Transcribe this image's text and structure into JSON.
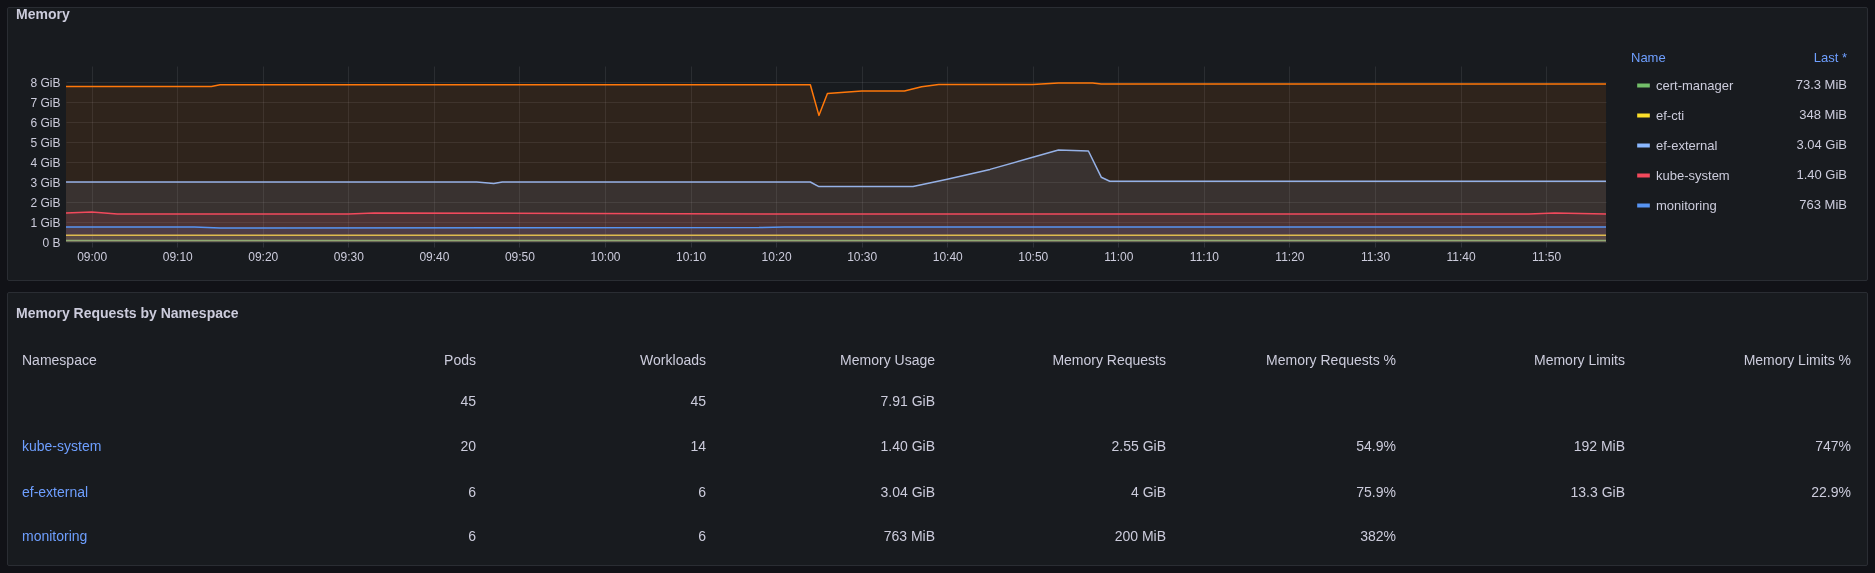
{
  "chart_data": [
    {
      "type": "area",
      "title": "Memory",
      "legend_title": "Name",
      "legend": "right",
      "grid": true,
      "annotations": [
        "Last *",
        "73.3 MiB",
        "348 MiB",
        "3.04 GiB",
        "1.40 GiB",
        "763 MiB"
      ],
      "xlim": [
        8.95,
        11.95
      ],
      "xticks": [
        {
          "value": 9,
          "label": "09:00"
        },
        {
          "value": 9.1667,
          "label": "09:10"
        },
        {
          "value": 9.3333,
          "label": "09:20"
        },
        {
          "value": 9.5,
          "label": "09:30"
        },
        {
          "value": 9.6667,
          "label": "09:40"
        },
        {
          "value": 9.8333,
          "label": "09:50"
        },
        {
          "value": 10,
          "label": "10:00"
        },
        {
          "value": 10.1667,
          "label": "10:10"
        },
        {
          "value": 10.3333,
          "label": "10:20"
        },
        {
          "value": 10.5,
          "label": "10:30"
        },
        {
          "value": 10.6667,
          "label": "10:40"
        },
        {
          "value": 10.8333,
          "label": "10:50"
        },
        {
          "value": 11,
          "label": "11:00"
        },
        {
          "value": 11.1667,
          "label": "11:10"
        },
        {
          "value": 11.3333,
          "label": "11:20"
        },
        {
          "value": 11.5,
          "label": "11:30"
        },
        {
          "value": 11.6667,
          "label": "11:40"
        },
        {
          "value": 11.8333,
          "label": "11:50"
        }
      ],
      "ylim": [
        0,
        8.8
      ],
      "yticks": [
        {
          "value": 0,
          "label": "0 B"
        },
        {
          "value": 1,
          "label": "1 GiB"
        },
        {
          "value": 2,
          "label": "2 GiB"
        },
        {
          "value": 3,
          "label": "3 GiB"
        },
        {
          "value": 4,
          "label": "4 GiB"
        },
        {
          "value": 5,
          "label": "5 GiB"
        },
        {
          "value": 6,
          "label": "6 GiB"
        },
        {
          "value": 7,
          "label": "7 GiB"
        },
        {
          "value": 8,
          "label": "8 GiB"
        }
      ],
      "series": [
        {
          "name": "cert-manager",
          "color": "#73bf69",
          "x": [
            8.95,
            11.95
          ],
          "values": [
            0.07,
            0.07
          ]
        },
        {
          "name": "ef-cti",
          "color": "#fade2a",
          "x": [
            8.95,
            11.95
          ],
          "values": [
            0.34,
            0.34
          ]
        },
        {
          "name": "ef-external",
          "color": "#8ab8ff",
          "x": [
            8.95,
            9.75,
            9.7833,
            9.8,
            10.4,
            10.4167,
            10.6,
            10.6667,
            10.75,
            10.8333,
            10.8833,
            10.9417,
            10.9667,
            10.9833,
            11.95
          ],
          "values": [
            3.0,
            3.0,
            2.93,
            3.0,
            3.0,
            2.77,
            2.77,
            3.14,
            3.63,
            4.24,
            4.6,
            4.55,
            3.24,
            3.04,
            3.04
          ]
        },
        {
          "color": "#ff780a",
          "x": [
            8.95,
            9.2333,
            9.25,
            10.4,
            10.4167,
            10.4333,
            10.5,
            10.5833,
            10.6167,
            10.65,
            10.8333,
            10.8833,
            10.95,
            10.9667,
            11.95
          ],
          "values": [
            7.78,
            7.78,
            7.86,
            7.86,
            6.33,
            7.42,
            7.55,
            7.55,
            7.76,
            7.88,
            7.88,
            7.95,
            7.95,
            7.9,
            7.9
          ]
        },
        {
          "name": "kube-system",
          "color": "#f2495c",
          "x": [
            8.95,
            9.0,
            9.05,
            9.5,
            9.55,
            10.4,
            10.45,
            11.8,
            11.85,
            11.95
          ],
          "values": [
            1.45,
            1.5,
            1.4,
            1.4,
            1.45,
            1.4,
            1.4,
            1.4,
            1.45,
            1.4
          ]
        },
        {
          "name": "monitoring",
          "color": "#5794f2",
          "x": [
            8.95,
            9.2,
            9.25,
            10.3,
            10.35,
            11.95
          ],
          "values": [
            0.75,
            0.75,
            0.7,
            0.72,
            0.75,
            0.75
          ]
        }
      ]
    },
    {
      "type": "other",
      "title": "Memory Requests by Namespace",
      "categories": [
        "Namespace",
        "Pods",
        "Workloads",
        "Memory Usage",
        "Memory Requests",
        "Memory Requests %",
        "Memory Limits",
        "Memory Limits %"
      ],
      "y_categories": [
        null,
        "kube-system",
        "ef-external",
        "monitoring"
      ],
      "cell_labels": [
        [
          "45",
          "45",
          "7.91 GiB",
          null,
          null,
          null,
          null
        ],
        [
          "20",
          "14",
          "1.40 GiB",
          "2.55 GiB",
          "54.9%",
          "192 MiB",
          "747%"
        ],
        [
          "6",
          "6",
          "3.04 GiB",
          "4 GiB",
          "75.9%",
          "13.3 GiB",
          "22.9%"
        ],
        [
          "6",
          "6",
          "763 MiB",
          "200 MiB",
          "382%",
          null,
          null
        ]
      ]
    }
  ]
}
